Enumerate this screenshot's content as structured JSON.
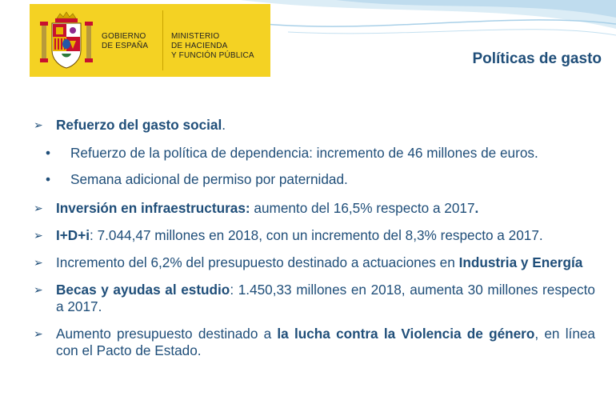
{
  "logo": {
    "gobierno": [
      "GOBIERNO",
      "DE ESPAÑA"
    ],
    "ministerio": [
      "MINISTERIO",
      "DE HACIENDA",
      "Y FUNCIÓN PÚBLICA"
    ],
    "colors": {
      "background": "#f4d223",
      "shield_red": "#c8102e"
    },
    "icon": "coat-of-arms-of-spain"
  },
  "page_title": "Políticas de gasto",
  "bullets": {
    "b1": {
      "bold": "Refuerzo del gasto social",
      "rest": "."
    },
    "s1": {
      "text": "Refuerzo de la política de dependencia: incremento de 46 millones de euros."
    },
    "s2": {
      "text": "Semana adicional de permiso por paternidad."
    },
    "b2": {
      "bold": "Inversión en infraestructuras:",
      "rest": " aumento del 16,5% respecto a 2017",
      "bold_end": "."
    },
    "b3": {
      "bold": "I+D+i",
      "rest": ": 7.044,47 millones en 2018, con un incremento del 8,3% respecto a 2017."
    },
    "b4": {
      "pre": "Incremento del 6,2% del presupuesto destinado a actuaciones en ",
      "bold": "Industria y Energía"
    },
    "b5": {
      "bold": "Becas y ayudas al estudio",
      "rest": ": 1.450,33 millones en 2018, aumenta 30 millones respecto a 2017."
    },
    "b6": {
      "pre": "Aumento presupuesto destinado a ",
      "bold": "la lucha contra la Violencia de género",
      "rest": ", en línea con el Pacto de Estado."
    }
  },
  "markers": {
    "arrow": "➢",
    "dot": "•"
  },
  "colors": {
    "text": "#1f4e79",
    "wave_light": "#dcedf6",
    "wave_mid": "#bfdcee"
  }
}
